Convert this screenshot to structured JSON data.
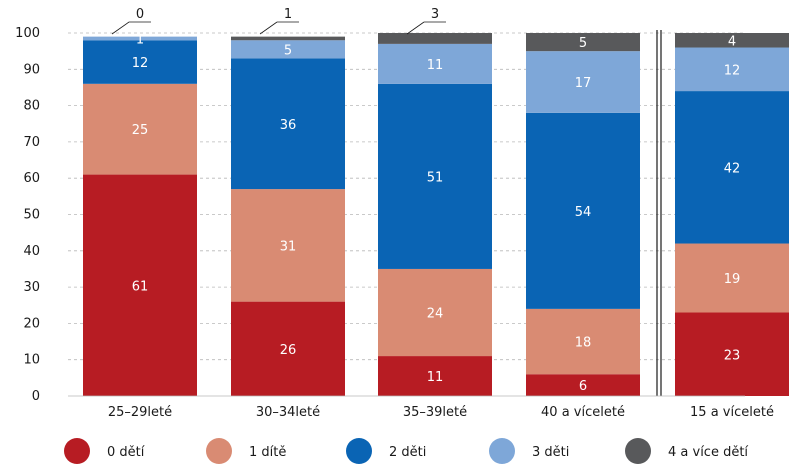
{
  "chart_data": {
    "type": "bar",
    "stacked": true,
    "title": "",
    "xlabel": "",
    "ylabel": "",
    "ylim": [
      0,
      100
    ],
    "yticks": [
      0,
      10,
      20,
      30,
      40,
      50,
      60,
      70,
      80,
      90,
      100
    ],
    "grid": "horizontal dashed",
    "legend_position": "bottom",
    "separator_before_last_category": true,
    "categories": [
      "25–29leté",
      "30–34leté",
      "35–39leté",
      "40 a víceleté",
      "15 a víceleté"
    ],
    "series": [
      {
        "name": "0 dětí",
        "color": "#b71c23",
        "values": [
          61,
          26,
          11,
          6,
          23
        ]
      },
      {
        "name": "1 dítě",
        "color": "#d98b73",
        "values": [
          25,
          31,
          24,
          18,
          19
        ]
      },
      {
        "name": "2 děti",
        "color": "#0a64b4",
        "values": [
          12,
          36,
          51,
          54,
          42
        ]
      },
      {
        "name": "3 děti",
        "color": "#7ea7d8",
        "values": [
          1,
          5,
          11,
          17,
          12
        ]
      },
      {
        "name": "4 a více dětí",
        "color": "#58595b",
        "values": [
          0,
          1,
          3,
          5,
          4
        ]
      }
    ]
  }
}
